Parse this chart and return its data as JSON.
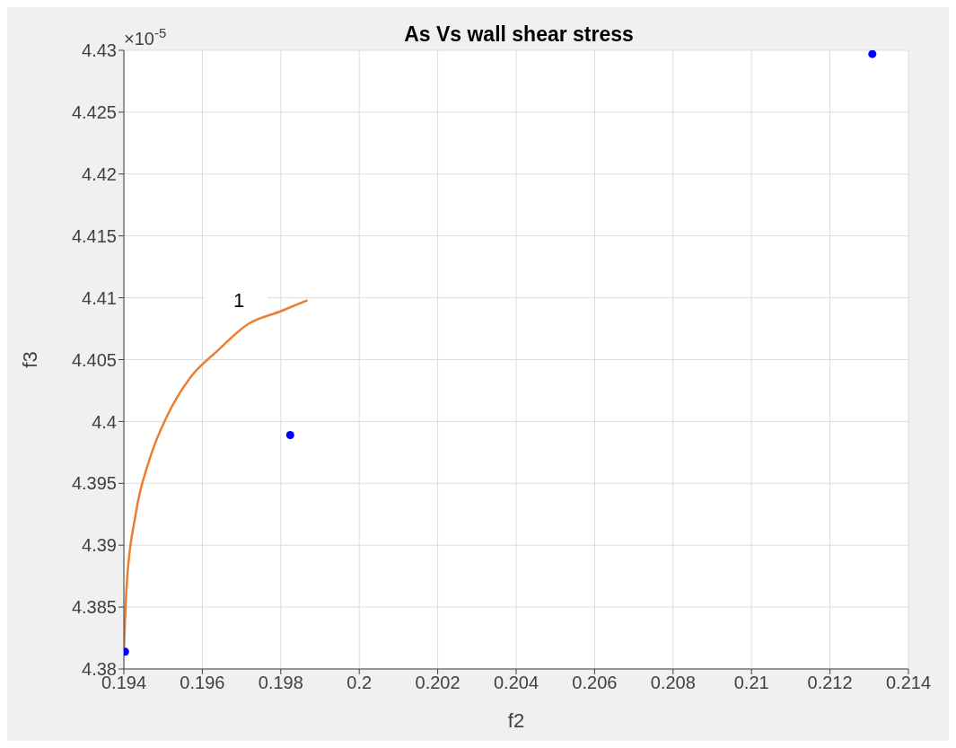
{
  "chart_data": {
    "type": "scatter",
    "title": "As Vs wall shear stress",
    "xlabel": "f2",
    "ylabel": "f3",
    "xlim": [
      0.194,
      0.214
    ],
    "xticks": [
      0.194,
      0.196,
      0.198,
      0.2,
      0.202,
      0.204,
      0.206,
      0.208,
      0.21,
      0.212,
      0.214
    ],
    "ylim": [
      4.38,
      4.43
    ],
    "yticks": [
      4.38,
      4.385,
      4.39,
      4.395,
      4.4,
      4.405,
      4.41,
      4.415,
      4.42,
      4.425,
      4.43
    ],
    "grid": true,
    "annotations": [
      "×10$^{-5}$",
      "1"
    ],
    "series": [
      {
        "type": "scatter",
        "color": "#0000ff",
        "marker": "circle",
        "x": [
          0.19403,
          0.19824,
          0.21308
        ],
        "values": [
          4.3814,
          4.3989,
          4.4297
        ]
      },
      {
        "type": "line",
        "color": "#ed7d31",
        "marker": "none",
        "line_style": "solid",
        "x": [
          0.194,
          0.19407,
          0.1943,
          0.19465,
          0.19511,
          0.19568,
          0.19638,
          0.19718,
          0.19799,
          0.19868
        ],
        "values": [
          4.3814,
          4.3867,
          4.3925,
          4.3969,
          4.4005,
          4.4035,
          4.4057,
          4.4079,
          4.4089,
          4.4098
        ]
      }
    ]
  }
}
